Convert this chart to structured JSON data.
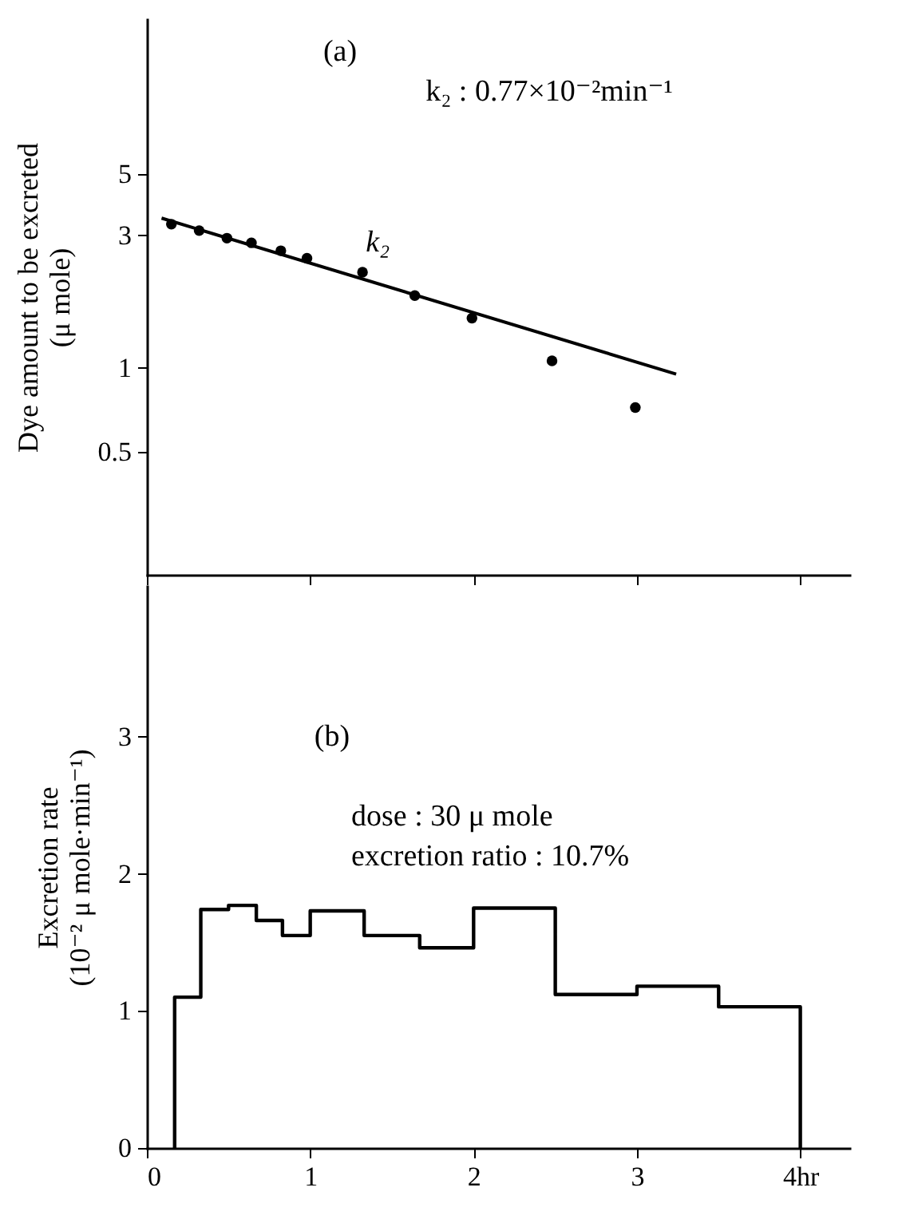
{
  "chart_data": [
    {
      "type": "scatter",
      "ylabel": "Dye amount to be excreted\n(μ mole)",
      "annotations": [
        "(a)",
        "k₂ : 0.77×10⁻²min⁻¹"
      ],
      "log": "y",
      "xlim": [
        0,
        4.3
      ],
      "xticks": [
        0,
        1,
        2,
        3,
        4
      ],
      "ylim": [
        0.18,
        18
      ],
      "yticks": [
        0.5,
        1,
        3,
        5
      ],
      "tick_labels": "y",
      "marker": "circle",
      "series": [
        {
          "color": "#000000",
          "x": [
            0.15,
            0.32,
            0.49,
            0.64,
            0.82,
            0.98,
            1.32,
            1.64,
            1.99,
            2.48,
            2.99
          ],
          "values": [
            3.29,
            3.12,
            2.93,
            2.82,
            2.64,
            2.48,
            2.21,
            1.82,
            1.51,
            1.06,
            0.72
          ]
        },
        {
          "type": "line",
          "name": "k₂",
          "color": "#000000",
          "marker": "none",
          "x": [
            0.09,
            3.24
          ],
          "values": [
            3.46,
            0.95
          ]
        }
      ]
    },
    {
      "type": "histogram",
      "ylabel": "Excretion rate\n(10⁻² μ mole·min⁻¹)",
      "annotations": [
        "(b)",
        "dose : 30 μ mole\nexcretion ratio : 10.7%"
      ],
      "xlim": [
        0,
        4.3
      ],
      "xticks": [
        0,
        1,
        2,
        3,
        {
          "value": 4,
          "label": "4hr"
        }
      ],
      "ylim": [
        0,
        4.1
      ],
      "yticks": [
        0,
        1,
        2,
        3
      ],
      "color": "#000000",
      "bins": [
        0.17,
        0.33,
        0.5,
        0.67,
        0.83,
        1,
        1.33,
        1.67,
        2,
        2.5,
        3,
        3.5,
        4
      ],
      "values": [
        1.1,
        1.74,
        1.77,
        1.66,
        1.55,
        1.73,
        1.55,
        1.46,
        1.75,
        1.12,
        1.18,
        1.03
      ]
    }
  ]
}
